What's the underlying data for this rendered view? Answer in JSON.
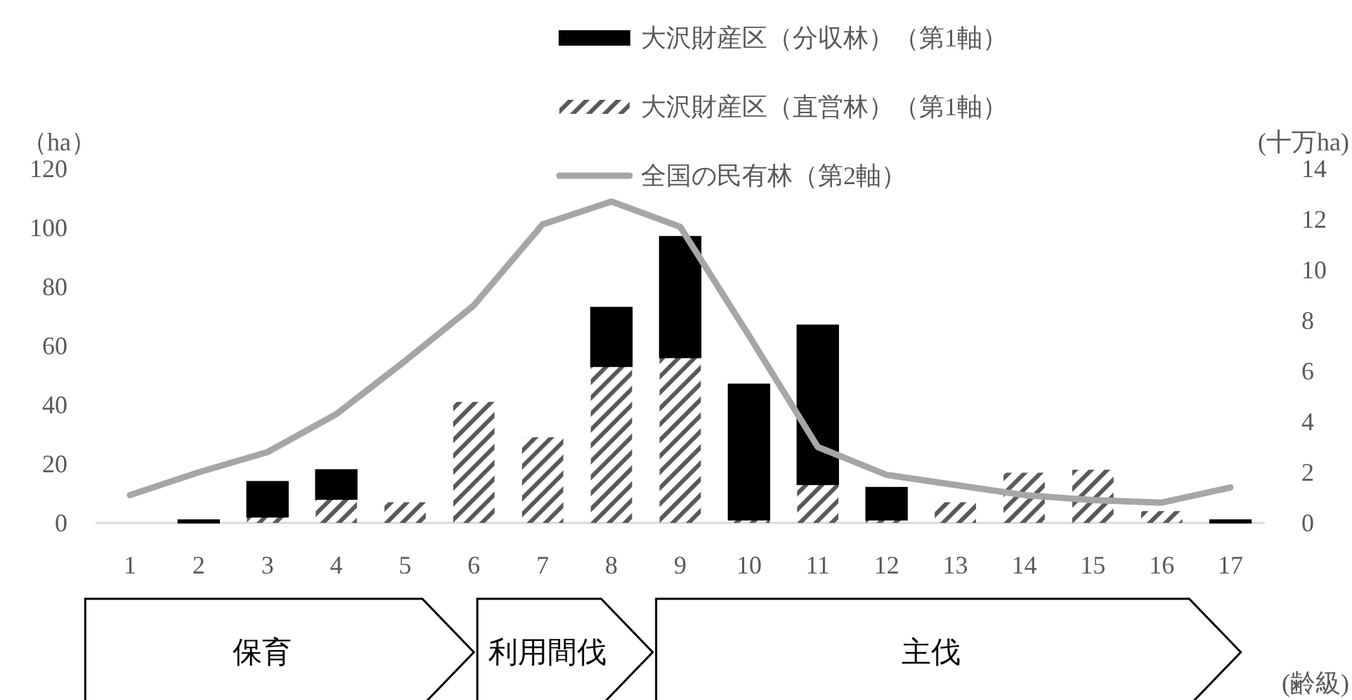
{
  "chart_data": {
    "type": "bar",
    "stacked": true,
    "categories": [
      "1",
      "2",
      "3",
      "4",
      "5",
      "6",
      "7",
      "8",
      "9",
      "10",
      "11",
      "12",
      "13",
      "14",
      "15",
      "16",
      "17"
    ],
    "series": [
      {
        "name": "大沢財産区（直営林）（第1軸）",
        "color": "#595959",
        "values": [
          0,
          0,
          2,
          8,
          7,
          41,
          29,
          53,
          56,
          1,
          13,
          1,
          7,
          17,
          18,
          4,
          0
        ]
      },
      {
        "name": "大沢財産区（分収林）（第1軸）",
        "color": "#000000",
        "values": [
          0,
          1,
          12,
          10,
          0,
          0,
          0,
          20,
          41,
          46,
          54,
          11,
          0,
          0,
          0,
          0,
          1
        ]
      },
      {
        "name": "全国の民有林（第2軸）",
        "type": "line",
        "axis": "y2",
        "color": "#a6a6a6",
        "values": [
          1.1,
          2.0,
          2.8,
          4.3,
          6.4,
          8.6,
          11.8,
          12.7,
          11.7,
          7.4,
          3.0,
          1.9,
          1.5,
          1.1,
          0.9,
          0.8,
          1.4
        ]
      }
    ],
    "ylim": [
      0,
      120
    ],
    "yticks": [
      0,
      20,
      40,
      60,
      80,
      100,
      120
    ],
    "y2lim": [
      0,
      14
    ],
    "y2ticks": [
      0,
      2,
      4,
      6,
      8,
      10,
      12,
      14
    ],
    "ylabel": "（ha）",
    "y2label": "(十万ha)",
    "xlabel": "(齢級)",
    "legend": "top",
    "annotations": [
      "保育",
      "利用間伐",
      "主伐"
    ]
  }
}
